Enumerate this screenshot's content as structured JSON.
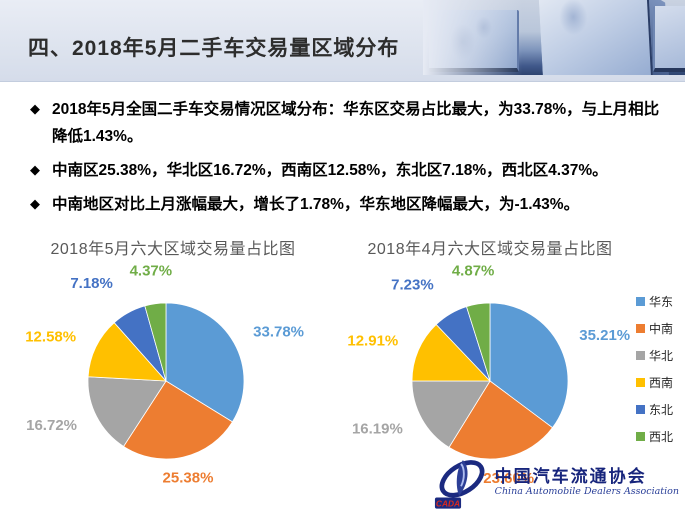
{
  "header": {
    "title": "四、2018年5月二手车交易量区域分布"
  },
  "bullets": {
    "marker": "◆",
    "items": [
      "2018年5月全国二手车交易情况区域分布：华东区交易占比最大，为33.78%，与上月相比降低1.43%。",
      "中南区25.38%，华北区16.72%，西南区12.58%，东北区7.18%，西北区4.37%。",
      "中南地区对比上月涨幅最大，增长了1.78%，华东地区降幅最大，为-1.43%。"
    ]
  },
  "chart_data": [
    {
      "type": "pie",
      "title": "2018年5月六大区域交易量占比图",
      "categories": [
        "华东",
        "中南",
        "华北",
        "西南",
        "东北",
        "西北"
      ],
      "values": [
        33.78,
        25.38,
        16.72,
        12.58,
        7.18,
        4.37
      ],
      "labels": [
        "33.78%",
        "25.38%",
        "16.72%",
        "12.58%",
        "7.18%",
        "4.37%"
      ],
      "colors": [
        "#5B9BD5",
        "#ED7D31",
        "#A5A5A5",
        "#FFC000",
        "#4472C4",
        "#70AD47"
      ],
      "start_angle_deg": 0,
      "direction": "clockwise",
      "legend_position": "none"
    },
    {
      "type": "pie",
      "title": "2018年4月六大区域交易量占比图",
      "categories": [
        "华东",
        "中南",
        "华北",
        "西南",
        "东北",
        "西北"
      ],
      "values": [
        35.21,
        23.6,
        16.19,
        12.91,
        7.23,
        4.87
      ],
      "labels": [
        "35.21%",
        "23.60%",
        "16.19%",
        "12.91%",
        "7.23%",
        "4.87%"
      ],
      "colors": [
        "#5B9BD5",
        "#ED7D31",
        "#A5A5A5",
        "#FFC000",
        "#4472C4",
        "#70AD47"
      ],
      "start_angle_deg": 0,
      "direction": "clockwise",
      "legend_position": "right"
    }
  ],
  "legend": {
    "items": [
      {
        "label": "华东",
        "color": "#5B9BD5"
      },
      {
        "label": "中南",
        "color": "#ED7D31"
      },
      {
        "label": "华北",
        "color": "#A5A5A5"
      },
      {
        "label": "西南",
        "color": "#FFC000"
      },
      {
        "label": "东北",
        "color": "#4472C4"
      },
      {
        "label": "西北",
        "color": "#70AD47"
      }
    ]
  },
  "footer": {
    "logo_acronym": "CADA",
    "org_cn": "中国汽车流通协会",
    "org_en": "China Automobile Dealers Association",
    "logo_blue": "#1b2a80",
    "logo_red": "#d92b1f"
  }
}
